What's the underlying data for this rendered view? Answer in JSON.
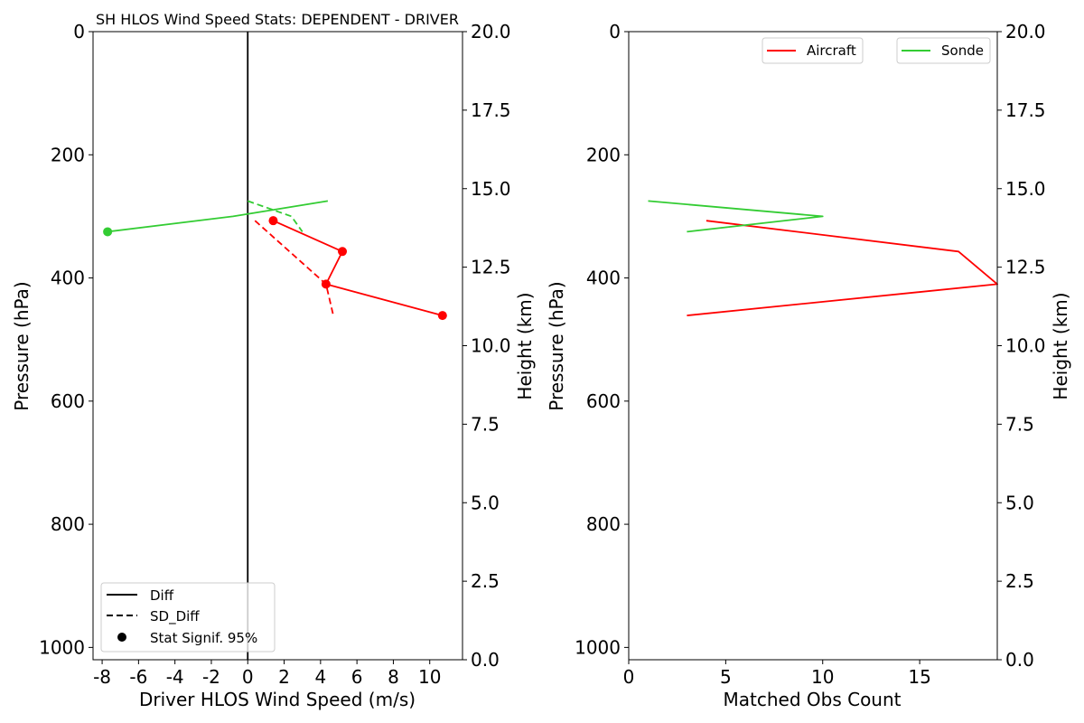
{
  "chart_data": [
    {
      "type": "line",
      "title": "SH HLOS Wind Speed Stats: DEPENDENT - DRIVER",
      "xlabel": "Driver HLOS Wind Speed (m/s)",
      "ylabel": "Pressure (hPa)",
      "y2label": "Height (km)",
      "xlim": [
        -8.5,
        11.8
      ],
      "ylim": [
        1020,
        0
      ],
      "y2lim": [
        0,
        20
      ],
      "xticks": [
        "-8",
        "-6",
        "-4",
        "-2",
        "0",
        "2",
        "4",
        "6",
        "8",
        "10"
      ],
      "yticks": [
        "0",
        "200",
        "400",
        "600",
        "800",
        "1000"
      ],
      "y2ticks": [
        "0.0",
        "2.5",
        "5.0",
        "7.5",
        "10.0",
        "12.5",
        "15.0",
        "17.5",
        "20.0"
      ],
      "zero_line": 0,
      "grid": false,
      "legend": {
        "placement": "lower-left",
        "entries": [
          {
            "label": "Diff",
            "style": "solid",
            "color": "#000000"
          },
          {
            "label": "SD_Diff",
            "style": "dashed",
            "color": "#000000"
          },
          {
            "label": "Stat Signif. 95%",
            "style": "marker",
            "color": "#000000"
          }
        ]
      },
      "series": [
        {
          "group": "sonde",
          "kind": "diff",
          "color": "#33cc33",
          "x": [
            4.4,
            -0.8,
            -7.7
          ],
          "y": [
            275,
            300,
            325
          ],
          "signif": [
            false,
            false,
            true
          ]
        },
        {
          "group": "sonde",
          "kind": "sd_diff",
          "color": "#33cc33",
          "x": [
            0.0,
            2.4,
            3.0
          ],
          "y": [
            275,
            300,
            325
          ]
        },
        {
          "group": "aircraft",
          "kind": "diff",
          "color": "#ff0000",
          "x": [
            1.4,
            5.2,
            4.3,
            10.7
          ],
          "y": [
            307,
            357,
            410,
            461
          ],
          "signif": [
            true,
            true,
            true,
            true
          ]
        },
        {
          "group": "aircraft",
          "kind": "sd_diff",
          "color": "#ff0000",
          "x": [
            0.4,
            4.3,
            4.7
          ],
          "y": [
            307,
            410,
            461
          ]
        }
      ]
    },
    {
      "type": "line",
      "xlabel": "Matched Obs Count",
      "ylabel": "Pressure (hPa)",
      "y2label": "Height (km)",
      "xlim": [
        0,
        19
      ],
      "ylim": [
        1020,
        0
      ],
      "y2lim": [
        0,
        20
      ],
      "xticks": [
        "0",
        "5",
        "10",
        "15"
      ],
      "yticks": [
        "0",
        "200",
        "400",
        "600",
        "800",
        "1000"
      ],
      "y2ticks": [
        "0.0",
        "2.5",
        "5.0",
        "7.5",
        "10.0",
        "12.5",
        "15.0",
        "17.5",
        "20.0"
      ],
      "grid": false,
      "legend": {
        "placement": "top-right",
        "entries": [
          {
            "label": "Aircraft",
            "color": "#ff0000"
          },
          {
            "label": "Sonde",
            "color": "#33cc33"
          }
        ]
      },
      "series": [
        {
          "name": "Aircraft",
          "color": "#ff0000",
          "x": [
            4,
            17,
            19,
            3
          ],
          "y": [
            307,
            357,
            410,
            461
          ]
        },
        {
          "name": "Sonde",
          "color": "#33cc33",
          "x": [
            1,
            10,
            3
          ],
          "y": [
            275,
            300,
            325
          ]
        }
      ]
    }
  ]
}
